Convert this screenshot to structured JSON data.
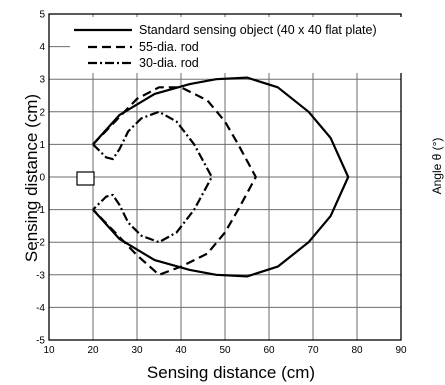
{
  "chart_data": {
    "type": "line",
    "xlabel": "Sensing distance (cm)",
    "ylabel": "Sensing distance (cm)",
    "right_axis_label": "Angle θ (°)",
    "xlim": [
      10,
      90
    ],
    "ylim": [
      -5,
      5
    ],
    "x_ticks": [
      "10",
      "20",
      "30",
      "40",
      "50",
      "60",
      "70",
      "80",
      "90"
    ],
    "y_ticks": [
      "5",
      "4",
      "3",
      "2",
      "1",
      "0",
      "-1",
      "-2",
      "-3",
      "-4",
      "-5"
    ],
    "grid": true,
    "legend_position": "top",
    "series": [
      {
        "name": "Standard sensing object (40 x 40 flat plate)",
        "dash": "solid",
        "points": [
          [
            20,
            1
          ],
          [
            26,
            1.9
          ],
          [
            34,
            2.55
          ],
          [
            42,
            2.85
          ],
          [
            48,
            3.0
          ],
          [
            55,
            3.05
          ],
          [
            62,
            2.75
          ],
          [
            69,
            2.0
          ],
          [
            74,
            1.2
          ],
          [
            78,
            0
          ],
          [
            74,
            -1.2
          ],
          [
            69,
            -2.0
          ],
          [
            62,
            -2.75
          ],
          [
            55,
            -3.05
          ],
          [
            48,
            -3.0
          ],
          [
            42,
            -2.85
          ],
          [
            34,
            -2.55
          ],
          [
            26,
            -1.9
          ],
          [
            20,
            -1
          ]
        ]
      },
      {
        "name": "55-dia. rod",
        "dash": "dash",
        "points": [
          [
            20,
            1
          ],
          [
            25,
            1.7
          ],
          [
            30,
            2.4
          ],
          [
            35,
            2.75
          ],
          [
            40,
            2.75
          ],
          [
            46,
            2.35
          ],
          [
            50,
            1.7
          ],
          [
            53,
            1.0
          ],
          [
            57,
            0
          ],
          [
            53,
            -1.0
          ],
          [
            50,
            -1.7
          ],
          [
            46,
            -2.35
          ],
          [
            40,
            -2.75
          ],
          [
            35,
            -3.0
          ],
          [
            30,
            -2.4
          ],
          [
            25,
            -1.7
          ],
          [
            20,
            -1
          ]
        ]
      },
      {
        "name": "30-dia. rod",
        "dash": "dashdot",
        "points": [
          [
            20,
            1
          ],
          [
            23,
            0.6
          ],
          [
            24.5,
            0.55
          ],
          [
            26,
            0.85
          ],
          [
            28,
            1.4
          ],
          [
            31,
            1.8
          ],
          [
            35,
            2.0
          ],
          [
            39,
            1.7
          ],
          [
            43,
            1.0
          ],
          [
            47,
            0
          ],
          [
            43,
            -1.0
          ],
          [
            39,
            -1.7
          ],
          [
            35,
            -2.0
          ],
          [
            31,
            -1.8
          ],
          [
            28,
            -1.4
          ],
          [
            26,
            -0.85
          ],
          [
            24.5,
            -0.55
          ],
          [
            23,
            -0.6
          ],
          [
            20,
            -1
          ]
        ]
      }
    ]
  }
}
